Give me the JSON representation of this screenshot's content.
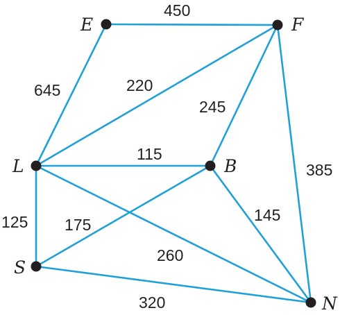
{
  "diagram": {
    "type": "weighted-undirected-graph",
    "edge_color": "#1fa0d8",
    "node_color": "#231f20",
    "nodes": [
      {
        "id": "E",
        "label": "E"
      },
      {
        "id": "F",
        "label": "F"
      },
      {
        "id": "L",
        "label": "L"
      },
      {
        "id": "B",
        "label": "B"
      },
      {
        "id": "S",
        "label": "S"
      },
      {
        "id": "N",
        "label": "N"
      }
    ],
    "edges": [
      {
        "id": "E-F",
        "from": "E",
        "to": "F",
        "weight": "450"
      },
      {
        "id": "E-L",
        "from": "E",
        "to": "L",
        "weight": "645"
      },
      {
        "id": "L-F",
        "from": "L",
        "to": "F",
        "weight": "220"
      },
      {
        "id": "B-F",
        "from": "B",
        "to": "F",
        "weight": "245"
      },
      {
        "id": "F-N",
        "from": "F",
        "to": "N",
        "weight": "385"
      },
      {
        "id": "L-B",
        "from": "L",
        "to": "B",
        "weight": "115"
      },
      {
        "id": "L-S",
        "from": "L",
        "to": "S",
        "weight": "125"
      },
      {
        "id": "S-B",
        "from": "S",
        "to": "B",
        "weight": "175"
      },
      {
        "id": "L-N",
        "from": "L",
        "to": "N",
        "weight": "260"
      },
      {
        "id": "B-N",
        "from": "B",
        "to": "N",
        "weight": "145"
      },
      {
        "id": "S-N",
        "from": "S",
        "to": "N",
        "weight": "320"
      }
    ]
  }
}
